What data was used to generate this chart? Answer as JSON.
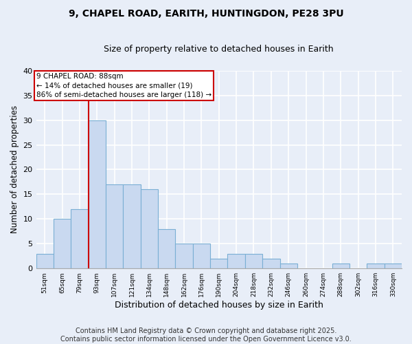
{
  "title1": "9, CHAPEL ROAD, EARITH, HUNTINGDON, PE28 3PU",
  "title2": "Size of property relative to detached houses in Earith",
  "xlabel": "Distribution of detached houses by size in Earith",
  "ylabel": "Number of detached properties",
  "categories": [
    "51sqm",
    "65sqm",
    "79sqm",
    "93sqm",
    "107sqm",
    "121sqm",
    "134sqm",
    "148sqm",
    "162sqm",
    "176sqm",
    "190sqm",
    "204sqm",
    "218sqm",
    "232sqm",
    "246sqm",
    "260sqm",
    "274sqm",
    "288sqm",
    "302sqm",
    "316sqm",
    "330sqm"
  ],
  "values": [
    3,
    10,
    12,
    30,
    17,
    17,
    16,
    8,
    5,
    5,
    2,
    3,
    3,
    2,
    1,
    0,
    0,
    1,
    0,
    1,
    1
  ],
  "bar_color": "#c9d9f0",
  "bar_edge_color": "#7aafd4",
  "background_color": "#e8eef8",
  "grid_color": "#ffffff",
  "vline_color": "#cc0000",
  "annotation_text": "9 CHAPEL ROAD: 88sqm\n← 14% of detached houses are smaller (19)\n86% of semi-detached houses are larger (118) →",
  "annotation_box_color": "#ffffff",
  "annotation_box_edge": "#cc0000",
  "ylim": [
    0,
    40
  ],
  "yticks": [
    0,
    5,
    10,
    15,
    20,
    25,
    30,
    35,
    40
  ],
  "footer": "Contains HM Land Registry data © Crown copyright and database right 2025.\nContains public sector information licensed under the Open Government Licence v3.0.",
  "title1_fontsize": 10,
  "title2_fontsize": 9,
  "footer_fontsize": 7,
  "bar_width": 1.0
}
